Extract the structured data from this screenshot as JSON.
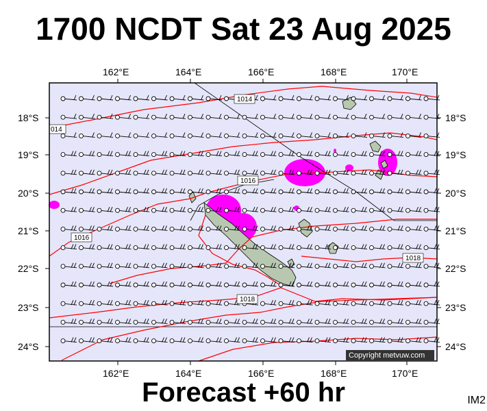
{
  "header": {
    "title": "1700 NCDT Sat 23 Aug 2025"
  },
  "footer": {
    "forecast": "Forecast +60 hr",
    "code": "IM2"
  },
  "copyright": "Copyright metvuw.com",
  "axes": {
    "lon_labels": [
      "162°E",
      "164°E",
      "166°E",
      "168°E",
      "170°E"
    ],
    "lat_labels": [
      "18°S",
      "19°S",
      "20°S",
      "21°S",
      "22°S",
      "23°S",
      "24°S"
    ]
  },
  "isobar_labels": [
    "1014",
    "014",
    "1016",
    "1016",
    "1018",
    "1018"
  ],
  "colors": {
    "sea": "#e6e6fa",
    "isobar": "#ff0000",
    "rain": "#ff00ff",
    "land": "#b8c8b0",
    "frame": "#000000"
  },
  "icons": {
    "wind-barb": "station circle with feather barbs",
    "copyright-box": "dark box with white text"
  }
}
